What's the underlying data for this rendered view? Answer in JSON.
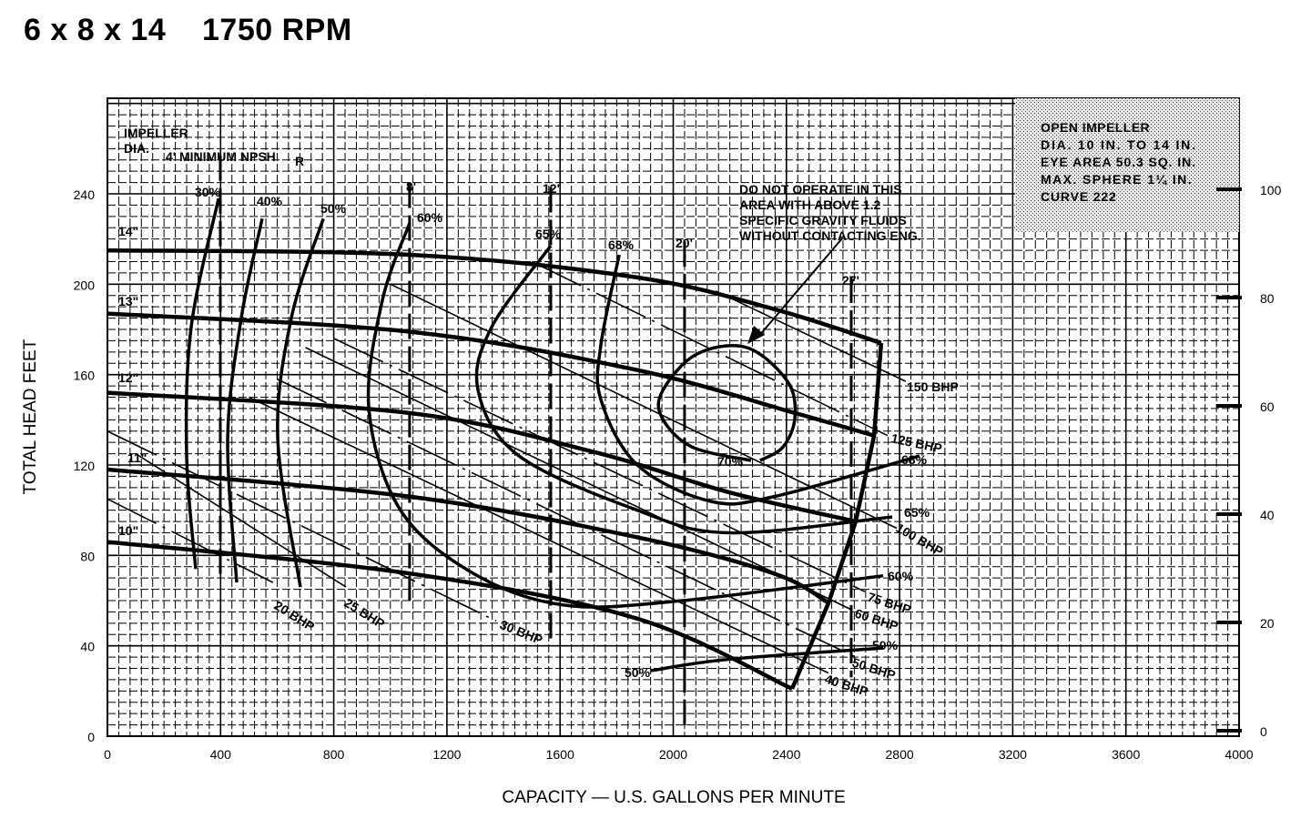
{
  "title": "6 x 8 x 14    1750 RPM",
  "chart_data": {
    "type": "line",
    "xlabel": "CAPACITY — U.S. GALLONS PER MINUTE",
    "ylabel": "TOTAL HEAD FEET",
    "xlim": [
      0,
      4000
    ],
    "ylim": [
      0,
      282
    ],
    "y2lim": [
      0,
      100
    ],
    "x_ticks": [
      "0",
      "400",
      "800",
      "1200",
      "1600",
      "2000",
      "2400",
      "2800",
      "3200",
      "3600",
      "4000"
    ],
    "y_ticks": [
      "0",
      "40",
      "80",
      "120",
      "160",
      "200",
      "240"
    ],
    "y2_ticks": [
      "0",
      "20",
      "40",
      "60",
      "80",
      "100"
    ],
    "grid": true,
    "corner_label": {
      "line1": "IMPELLER",
      "line2": "DIA.",
      "npsh_label": "4' MINIMUM NPSH",
      "npsh_sub": "R"
    },
    "info_box": [
      "OPEN IMPELLER",
      "DIA. 10 IN. TO 14 IN.",
      "EYE AREA 50.3 SQ. IN.",
      "MAX. SPHERE 1¼ IN.",
      "CURVE 222"
    ],
    "warning": [
      "DO NOT OPERATE IN THIS",
      "AREA WITH ABOVE 1.2",
      "SPECIFIC GRAVITY FLUIDS",
      "WITHOUT CONTACTING ENG."
    ],
    "head_curves": [
      {
        "name": "14\"",
        "points": [
          [
            0,
            215
          ],
          [
            1068,
            213
          ],
          [
            1873,
            203
          ],
          [
            2356,
            189
          ],
          [
            2735,
            174
          ]
        ]
      },
      {
        "name": "13\"",
        "points": [
          [
            0,
            187
          ],
          [
            1068,
            179
          ],
          [
            1873,
            162
          ],
          [
            2430,
            143
          ],
          [
            2710,
            133
          ]
        ]
      },
      {
        "name": "12\"",
        "points": [
          [
            0,
            152
          ],
          [
            1068,
            143
          ],
          [
            1712,
            126
          ],
          [
            2195,
            108
          ],
          [
            2645,
            95
          ]
        ]
      },
      {
        "name": "11\"",
        "points": [
          [
            0,
            118
          ],
          [
            1068,
            106
          ],
          [
            1873,
            88
          ],
          [
            2356,
            72
          ],
          [
            2549,
            59
          ]
        ]
      },
      {
        "name": "10\"",
        "points": [
          [
            0,
            86
          ],
          [
            1068,
            72
          ],
          [
            1873,
            52
          ],
          [
            2420,
            21
          ]
        ]
      }
    ],
    "operating_limit": [
      [
        2735,
        174
      ],
      [
        2710,
        133
      ],
      [
        2645,
        95
      ],
      [
        2549,
        59
      ],
      [
        2420,
        21
      ]
    ],
    "efficiency_curves": [
      {
        "name": "30%",
        "points": [
          [
            393,
            238
          ],
          [
            296,
            181
          ],
          [
            280,
            124
          ],
          [
            312,
            74
          ]
        ]
      },
      {
        "name": "40%",
        "points": [
          [
            547,
            229
          ],
          [
            473,
            185
          ],
          [
            425,
            132
          ],
          [
            457,
            68
          ]
        ]
      },
      {
        "name": "50%",
        "points": [
          [
            763,
            229
          ],
          [
            650,
            185
          ],
          [
            602,
            132
          ],
          [
            682,
            66
          ]
        ]
      },
      {
        "name": "60%",
        "points": [
          [
            1068,
            227
          ],
          [
            972,
            193
          ],
          [
            924,
            145
          ],
          [
            1036,
            100
          ],
          [
            1294,
            72
          ],
          [
            1615,
            58
          ],
          [
            2034,
            60
          ],
          [
            2742,
            71
          ]
        ]
      },
      {
        "name": "65%",
        "points": [
          [
            1567,
            217
          ],
          [
            1358,
            181
          ],
          [
            1310,
            153
          ],
          [
            1455,
            124
          ],
          [
            1873,
            100
          ],
          [
            2195,
            90
          ],
          [
            2774,
            97
          ]
        ]
      },
      {
        "name": "68%",
        "points": [
          [
            1809,
            213
          ],
          [
            1744,
            173
          ],
          [
            1744,
            149
          ],
          [
            1873,
            120
          ],
          [
            2130,
            104
          ],
          [
            2356,
            106
          ],
          [
            2870,
            124
          ]
        ]
      },
      {
        "name": "70%",
        "points": [
          [
            2275,
            122
          ],
          [
            2066,
            128
          ],
          [
            1960,
            141
          ],
          [
            1963,
            153
          ],
          [
            2082,
            169
          ],
          [
            2259,
            172
          ],
          [
            2404,
            157
          ],
          [
            2430,
            141
          ],
          [
            2388,
            128
          ],
          [
            2307,
            122
          ]
        ]
      },
      {
        "name": "50%",
        "points": [
          [
            1921,
            29
          ],
          [
            2195,
            34
          ],
          [
            2742,
            39
          ]
        ]
      }
    ],
    "bhp_lines": [
      {
        "name": "20 BHP",
        "points": [
          [
            0,
            105
          ],
          [
            585,
            68
          ]
        ]
      },
      {
        "name": "25 BHP",
        "points": [
          [
            100,
            125
          ],
          [
            843,
            66
          ]
        ]
      },
      {
        "name": "30 BHP",
        "points": [
          [
            0,
            135
          ],
          [
            1374,
            51
          ]
        ]
      },
      {
        "name": "40 BHP",
        "points": [
          [
            500,
            150
          ],
          [
            2548,
            28
          ]
        ]
      },
      {
        "name": "50 BHP",
        "points": [
          [
            600,
            158
          ],
          [
            2661,
            34
          ]
        ]
      },
      {
        "name": "60 BHP",
        "points": [
          [
            700,
            172
          ],
          [
            2629,
            56
          ]
        ]
      },
      {
        "name": "75 BHP",
        "points": [
          [
            800,
            176
          ],
          [
            2677,
            64
          ]
        ]
      },
      {
        "name": "100 BHP",
        "points": [
          [
            1000,
            200
          ],
          [
            2790,
            92
          ]
        ]
      },
      {
        "name": "125 BHP",
        "points": [
          [
            1500,
            210
          ],
          [
            2758,
            133
          ]
        ]
      },
      {
        "name": "150 BHP",
        "points": [
          [
            2150,
            197
          ],
          [
            2822,
            157
          ]
        ]
      }
    ],
    "npsh_lines": [
      {
        "name": "4'",
        "gpm": 399,
        "head_range": [
          70,
          257
        ]
      },
      {
        "name": "8'",
        "gpm": 1068,
        "head_range": [
          60,
          245
        ]
      },
      {
        "name": "12'",
        "gpm": 1567,
        "head_range": [
          40,
          243
        ]
      },
      {
        "name": "20'",
        "gpm": 2040,
        "head_range": [
          4,
          219
        ]
      },
      {
        "name": "27'",
        "gpm": 2629,
        "head_range": [
          26,
          203
        ]
      }
    ]
  }
}
